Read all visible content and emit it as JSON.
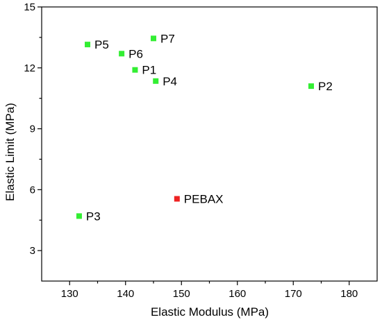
{
  "chart_data": {
    "type": "scatter",
    "xlabel": "Elastic Modulus (MPa)",
    "ylabel": "Elastic Limit (MPa)",
    "xlim": [
      125,
      185
    ],
    "ylim": [
      1.5,
      15
    ],
    "xticks": [
      130,
      140,
      150,
      160,
      170,
      180
    ],
    "yticks": [
      3,
      6,
      9,
      12,
      15
    ],
    "grid": false,
    "points": [
      {
        "label": "P1",
        "x": 141.7,
        "y": 11.9,
        "color": "#33ee33"
      },
      {
        "label": "P2",
        "x": 173.2,
        "y": 11.1,
        "color": "#33ee33"
      },
      {
        "label": "P3",
        "x": 131.7,
        "y": 4.7,
        "color": "#33ee33"
      },
      {
        "label": "P4",
        "x": 145.4,
        "y": 11.35,
        "color": "#33ee33"
      },
      {
        "label": "P5",
        "x": 133.2,
        "y": 13.15,
        "color": "#33ee33"
      },
      {
        "label": "P6",
        "x": 139.3,
        "y": 12.7,
        "color": "#33ee33"
      },
      {
        "label": "P7",
        "x": 145.0,
        "y": 13.45,
        "color": "#33ee33"
      },
      {
        "label": "PEBAX",
        "x": 149.2,
        "y": 5.55,
        "color": "#ee2222"
      }
    ]
  }
}
